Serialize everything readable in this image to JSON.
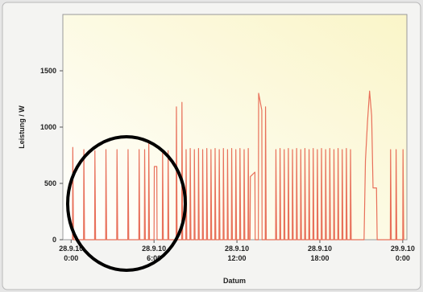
{
  "chart_data": {
    "type": "line",
    "xlabel": "Datum",
    "ylabel": "Leistung / W",
    "color": "#e8705a",
    "x": [
      0.1,
      0.12,
      0.17,
      0.9,
      0.92,
      0.97,
      1.7,
      1.72,
      1.77,
      2.5,
      2.52,
      2.57,
      3.3,
      3.32,
      3.37,
      4.1,
      4.12,
      4.17,
      4.9,
      4.92,
      4.97,
      5.3,
      5.32,
      5.37,
      5.6,
      5.62,
      5.67,
      6.0,
      6.02,
      6.2,
      6.22,
      6.6,
      6.62,
      6.67,
      7.0,
      7.02,
      7.07,
      7.6,
      7.62,
      7.67,
      8.0,
      8.02,
      8.07,
      8.3,
      8.32,
      8.37,
      8.6,
      8.62,
      8.67,
      8.9,
      8.92,
      8.97,
      9.2,
      9.22,
      9.27,
      9.5,
      9.52,
      9.57,
      9.8,
      9.82,
      9.87,
      10.1,
      10.12,
      10.17,
      10.4,
      10.42,
      10.47,
      10.7,
      10.72,
      10.77,
      11.0,
      11.02,
      11.07,
      11.3,
      11.32,
      11.37,
      11.6,
      11.62,
      11.67,
      11.9,
      11.92,
      11.97,
      12.2,
      12.22,
      12.27,
      12.5,
      12.52,
      12.57,
      12.8,
      12.82,
      12.87,
      12.95,
      12.97,
      13.3,
      13.32,
      13.55,
      13.57,
      13.8,
      13.82,
      14.05,
      14.07,
      14.12,
      14.8,
      14.82,
      14.87,
      15.1,
      15.12,
      15.17,
      15.4,
      15.42,
      15.47,
      15.7,
      15.72,
      15.77,
      16.0,
      16.02,
      16.07,
      16.3,
      16.32,
      16.37,
      16.6,
      16.62,
      16.67,
      16.9,
      16.92,
      16.97,
      17.2,
      17.22,
      17.27,
      17.5,
      17.52,
      17.57,
      17.8,
      17.82,
      17.87,
      18.1,
      18.12,
      18.17,
      18.4,
      18.42,
      18.47,
      18.7,
      18.72,
      18.77,
      19.0,
      19.02,
      19.07,
      19.3,
      19.32,
      19.37,
      19.6,
      19.62,
      19.67,
      19.9,
      19.92,
      19.97,
      20.2,
      20.22,
      20.27,
      21.2,
      21.3,
      21.45,
      21.6,
      21.75,
      21.85,
      22.1,
      22.15,
      23.1,
      23.12,
      23.17,
      23.5,
      23.52,
      23.57,
      24.0,
      24.02,
      24.07
    ],
    "values": [
      0,
      820,
      0,
      0,
      800,
      0,
      0,
      790,
      0,
      0,
      800,
      0,
      0,
      800,
      0,
      0,
      800,
      0,
      0,
      800,
      0,
      0,
      800,
      0,
      0,
      870,
      0,
      0,
      650,
      650,
      0,
      0,
      800,
      0,
      0,
      790,
      0,
      0,
      1180,
      0,
      0,
      1220,
      0,
      0,
      800,
      0,
      0,
      810,
      0,
      0,
      800,
      0,
      0,
      810,
      0,
      0,
      800,
      0,
      0,
      810,
      0,
      0,
      800,
      0,
      0,
      810,
      0,
      0,
      800,
      0,
      0,
      810,
      0,
      0,
      800,
      0,
      0,
      810,
      0,
      0,
      800,
      0,
      0,
      810,
      0,
      0,
      800,
      0,
      0,
      810,
      0,
      0,
      560,
      600,
      0,
      0,
      1300,
      1150,
      0,
      0,
      1180,
      0,
      0,
      800,
      0,
      0,
      810,
      0,
      0,
      800,
      0,
      0,
      810,
      0,
      0,
      800,
      0,
      0,
      810,
      0,
      0,
      800,
      0,
      0,
      810,
      0,
      0,
      800,
      0,
      0,
      810,
      0,
      0,
      800,
      0,
      0,
      810,
      0,
      0,
      800,
      0,
      0,
      810,
      0,
      0,
      800,
      0,
      0,
      810,
      0,
      0,
      800,
      0,
      0,
      810,
      0,
      0,
      800,
      0,
      0,
      700,
      1050,
      1320,
      1100,
      460,
      460,
      0,
      0,
      800,
      0,
      0,
      800,
      0,
      0,
      800,
      0
    ],
    "xlim": [
      -0.6,
      24.3
    ],
    "xticks": [
      {
        "value": 0,
        "label": "28.9.10\n0:00"
      },
      {
        "value": 6,
        "label": "28.9.10\n6:00"
      },
      {
        "value": 12,
        "label": "28.9.10\n12:00"
      },
      {
        "value": 18,
        "label": "28.9.10\n18:00"
      },
      {
        "value": 24,
        "label": "29.9.10\n0:00"
      }
    ],
    "ylim": [
      0,
      2000
    ],
    "yticks": [
      0,
      500,
      1000,
      1500
    ]
  }
}
